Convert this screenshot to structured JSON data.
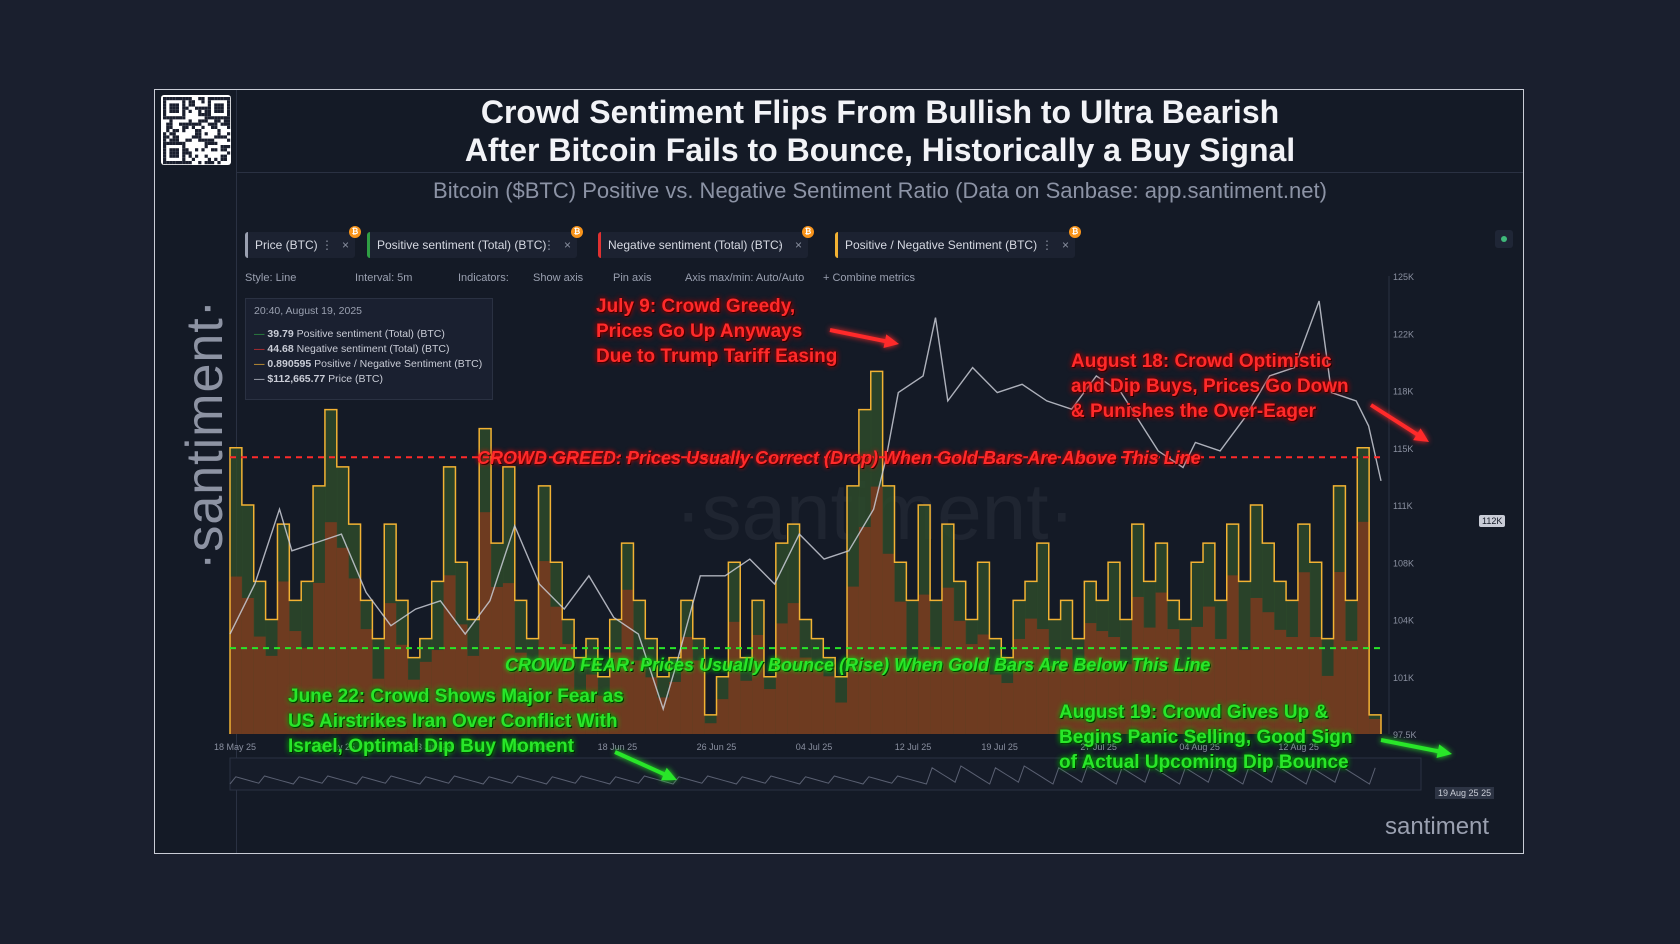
{
  "header": {
    "title_line1": "Crowd Sentiment Flips From Bullish to Ultra Bearish",
    "title_line2": "After Bitcoin Fails to Bounce, Historically a Buy Signal",
    "subtitle": "Bitcoin ($BTC) Positive vs. Negative Sentiment Ratio (Data on Sanbase: app.santiment.net)"
  },
  "brand": {
    "vertical": "·santiment·",
    "watermark": "·santiment·",
    "corner": "santiment"
  },
  "tabs": [
    {
      "label": "Price (BTC)",
      "color": "#9aa0b0"
    },
    {
      "label": "Positive sentiment (Total) (BTC)",
      "color": "#2f9e44"
    },
    {
      "label": "Negative sentiment (Total) (BTC)",
      "color": "#e03131"
    },
    {
      "label": "Positive / Negative Sentiment (BTC)",
      "color": "#f2b233"
    }
  ],
  "tab_close": "×",
  "tab_dots": "⋮",
  "coin_symbol": "₿",
  "toolbar": {
    "style": "Style: Line",
    "interval": "Interval: 5m",
    "indicators": "Indicators:",
    "show_axis": "Show axis",
    "pin_axis": "Pin axis",
    "axis_maxmin": "Axis max/min: Auto/Auto",
    "combine": "+ Combine metrics"
  },
  "tooltip": {
    "time": "20:40, August 19, 2025",
    "rows": [
      {
        "value": "39.79",
        "label": "Positive sentiment (Total) (BTC)",
        "color": "#2f9e44"
      },
      {
        "value": "44.68",
        "label": "Negative sentiment (Total) (BTC)",
        "color": "#e03131"
      },
      {
        "value": "0.890595",
        "label": "Positive / Negative Sentiment (BTC)",
        "color": "#f2b233"
      },
      {
        "value": "$112,665.77",
        "label": "Price (BTC)",
        "color": "#c9ccd6"
      }
    ]
  },
  "badges": {
    "price": "112K",
    "date": "19 Aug 25",
    "date_tail": "25"
  },
  "annotations": {
    "july9": [
      "July 9: Crowd Greedy,",
      "Prices Go Up Anyways",
      "Due to Trump Tariff Easing"
    ],
    "aug18": [
      "August 18: Crowd Optimistic",
      "and Dip Buys, Prices Go Down",
      "& Punishes the Over-Eager"
    ],
    "june22": [
      "June 22: Crowd Shows Major Fear as",
      "US Airstrikes Iran Over Conflict With",
      "Israel, Optimal Dip Buy Moment"
    ],
    "aug19": [
      "August 19: Crowd Gives Up &",
      "Begins Panic Selling, Good Sign",
      "of Actual Upcoming Dip Bounce"
    ],
    "greed_line": "CROWD GREED: Prices Usually Correct (Drop) When Gold Bars Are Above This Line",
    "fear_line": "CROWD FEAR: Prices Usually Bounce (Rise) When Gold Bars Are Below This Line"
  },
  "colors": {
    "greed": "#ff2a2a",
    "fear": "#29e629",
    "ratio": "#f2b233",
    "price": "#c9ccd6",
    "positive": "#2f9e44",
    "negative": "#e03131"
  },
  "chart_data": {
    "type": "line",
    "x_ticks": [
      "18 May 25",
      "26 May 25",
      "03 Jun 25",
      "11 Jun 25",
      "18 Jun 25",
      "26 Jun 25",
      "04 Jul 25",
      "12 Jul 25",
      "19 Jul 25",
      "27 Jul 25",
      "04 Aug 25",
      "12 Aug 25"
    ],
    "y_ticks": [
      "125K",
      "122K",
      "118K",
      "115K",
      "111K",
      "108K",
      "104K",
      "101K",
      "97.5K"
    ],
    "price_ylim": [
      97500,
      125000
    ],
    "price": [
      [
        "18 May 25",
        103500
      ],
      [
        "20 May 25",
        106500
      ],
      [
        "22 May 25",
        111000
      ],
      [
        "23 May 25",
        108500
      ],
      [
        "25 May 25",
        109000
      ],
      [
        "27 May 25",
        109500
      ],
      [
        "29 May 25",
        106000
      ],
      [
        "31 May 25",
        104000
      ],
      [
        "02 Jun 25",
        105000
      ],
      [
        "04 Jun 25",
        105500
      ],
      [
        "06 Jun 25",
        103500
      ],
      [
        "08 Jun 25",
        105500
      ],
      [
        "10 Jun 25",
        110000
      ],
      [
        "12 Jun 25",
        106500
      ],
      [
        "14 Jun 25",
        105000
      ],
      [
        "16 Jun 25",
        107000
      ],
      [
        "18 Jun 25",
        104500
      ],
      [
        "20 Jun 25",
        103500
      ],
      [
        "22 Jun 25",
        99000
      ],
      [
        "23 Jun 25",
        101500
      ],
      [
        "25 Jun 25",
        107000
      ],
      [
        "27 Jun 25",
        107000
      ],
      [
        "29 Jun 25",
        108000
      ],
      [
        "01 Jul 25",
        106500
      ],
      [
        "03 Jul 25",
        109500
      ],
      [
        "05 Jul 25",
        108000
      ],
      [
        "07 Jul 25",
        108500
      ],
      [
        "09 Jul 25",
        111000
      ],
      [
        "10 Jul 25",
        114000
      ],
      [
        "11 Jul 25",
        118000
      ],
      [
        "13 Jul 25",
        119000
      ],
      [
        "14 Jul 25",
        122500
      ],
      [
        "15 Jul 25",
        117500
      ],
      [
        "17 Jul 25",
        119500
      ],
      [
        "19 Jul 25",
        118000
      ],
      [
        "21 Jul 25",
        118500
      ],
      [
        "23 Jul 25",
        117500
      ],
      [
        "25 Jul 25",
        117000
      ],
      [
        "27 Jul 25",
        119000
      ],
      [
        "29 Jul 25",
        118000
      ],
      [
        "01 Aug 25",
        114500
      ],
      [
        "03 Aug 25",
        113500
      ],
      [
        "04 Aug 25",
        115000
      ],
      [
        "06 Aug 25",
        114500
      ],
      [
        "08 Aug 25",
        116500
      ],
      [
        "10 Aug 25",
        119000
      ],
      [
        "12 Aug 25",
        119500
      ],
      [
        "14 Aug 25",
        123500
      ],
      [
        "15 Aug 25",
        118000
      ],
      [
        "17 Aug 25",
        117500
      ],
      [
        "18 Aug 25",
        116000
      ],
      [
        "19 Aug 25",
        112700
      ]
    ],
    "ratio_ylim": [
      0.9,
      3.3
    ],
    "ratio_bars": [
      2.4,
      2.1,
      1.7,
      1.5,
      2.0,
      1.6,
      1.7,
      2.2,
      2.6,
      2.3,
      2.0,
      1.6,
      1.4,
      2.0,
      1.6,
      1.3,
      1.4,
      1.7,
      2.3,
      1.8,
      1.5,
      2.5,
      1.9,
      2.3,
      1.6,
      1.4,
      2.2,
      1.8,
      1.5,
      1.3,
      1.4,
      1.2,
      1.5,
      1.9,
      1.6,
      1.4,
      1.2,
      1.3,
      1.6,
      1.4,
      1.0,
      1.2,
      1.8,
      1.3,
      1.6,
      1.2,
      1.9,
      2.0,
      1.5,
      1.4,
      1.3,
      1.2,
      2.2,
      2.6,
      2.8,
      2.2,
      1.8,
      1.6,
      2.1,
      1.6,
      2.0,
      1.7,
      1.5,
      1.8,
      1.4,
      1.3,
      1.6,
      1.7,
      1.9,
      1.5,
      1.6,
      1.4,
      1.7,
      1.6,
      1.8,
      1.5,
      2.0,
      1.7,
      1.9,
      1.6,
      1.5,
      1.8,
      1.9,
      1.6,
      2.0,
      1.7,
      2.1,
      1.9,
      1.7,
      1.6,
      2.0,
      1.8,
      1.4,
      2.2,
      1.6,
      2.4,
      1.0
    ],
    "greed_threshold": 2.35,
    "fear_threshold": 1.35
  }
}
